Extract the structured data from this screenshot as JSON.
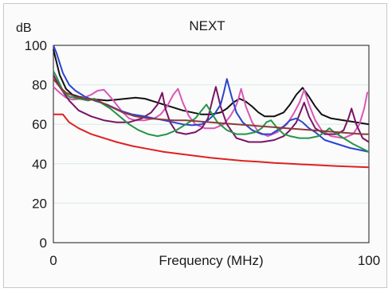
{
  "chart_data": {
    "type": "line",
    "title": "NEXT",
    "ylabel": "dB",
    "xlabel": "Frequency (MHz)",
    "xlim": [
      0,
      100
    ],
    "ylim": [
      0,
      100
    ],
    "x_ticks": [
      "0",
      "100"
    ],
    "y_ticks": [
      "100",
      "80",
      "60",
      "40",
      "20",
      "0"
    ],
    "grid": "horizontal",
    "legend": "none",
    "series": [
      {
        "color": "#e02020",
        "values": [
          [
            0,
            65
          ],
          [
            3,
            65
          ],
          [
            5,
            61
          ],
          [
            8,
            58
          ],
          [
            12,
            55
          ],
          [
            16,
            53
          ],
          [
            20,
            51
          ],
          [
            25,
            49
          ],
          [
            30,
            47.5
          ],
          [
            35,
            46
          ],
          [
            40,
            45
          ],
          [
            45,
            44
          ],
          [
            50,
            43
          ],
          [
            55,
            42.2
          ],
          [
            60,
            41.5
          ],
          [
            65,
            41
          ],
          [
            70,
            40.4
          ],
          [
            75,
            40
          ],
          [
            80,
            39.6
          ],
          [
            85,
            39.2
          ],
          [
            90,
            38.8
          ],
          [
            95,
            38.5
          ],
          [
            100,
            38.2
          ]
        ]
      },
      {
        "color": "#111111",
        "values": [
          [
            0,
            98
          ],
          [
            2,
            85
          ],
          [
            4,
            78
          ],
          [
            6,
            75
          ],
          [
            8,
            74
          ],
          [
            11,
            73
          ],
          [
            14,
            72.5
          ],
          [
            17,
            72
          ],
          [
            20,
            72.5
          ],
          [
            23,
            73
          ],
          [
            26,
            73.5
          ],
          [
            29,
            73
          ],
          [
            32,
            71.5
          ],
          [
            35,
            70
          ],
          [
            38,
            68.5
          ],
          [
            41,
            67
          ],
          [
            44,
            66
          ],
          [
            47,
            65
          ],
          [
            50,
            65
          ],
          [
            53,
            66
          ],
          [
            55,
            68
          ],
          [
            57,
            71
          ],
          [
            59,
            73
          ],
          [
            61,
            71.5
          ],
          [
            63,
            69
          ],
          [
            65,
            66
          ],
          [
            67,
            64
          ],
          [
            70,
            64
          ],
          [
            73,
            66
          ],
          [
            75,
            70
          ],
          [
            77,
            75
          ],
          [
            79,
            78.5
          ],
          [
            81,
            74
          ],
          [
            83,
            69
          ],
          [
            85,
            65
          ],
          [
            88,
            63
          ],
          [
            92,
            62
          ],
          [
            96,
            61
          ],
          [
            100,
            60
          ]
        ]
      },
      {
        "color": "#d957b6",
        "values": [
          [
            0,
            79
          ],
          [
            2,
            76
          ],
          [
            4,
            73.5
          ],
          [
            6,
            72.5
          ],
          [
            9,
            73
          ],
          [
            12,
            75
          ],
          [
            14,
            77
          ],
          [
            16,
            77.5
          ],
          [
            18,
            74
          ],
          [
            20,
            70
          ],
          [
            22,
            66
          ],
          [
            24,
            63
          ],
          [
            26,
            62
          ],
          [
            29,
            62
          ],
          [
            32,
            63
          ],
          [
            34,
            65
          ],
          [
            36,
            69
          ],
          [
            38,
            75
          ],
          [
            39.5,
            78
          ],
          [
            41,
            71
          ],
          [
            43,
            64
          ],
          [
            45,
            60
          ],
          [
            48,
            58
          ],
          [
            51,
            58
          ],
          [
            54,
            60
          ],
          [
            56,
            64
          ],
          [
            57.5,
            68
          ],
          [
            58.5,
            72
          ],
          [
            59.5,
            78
          ],
          [
            61,
            69
          ],
          [
            63,
            61
          ],
          [
            65,
            56
          ],
          [
            68,
            54
          ],
          [
            71,
            56
          ],
          [
            74,
            60
          ],
          [
            76,
            65
          ],
          [
            78,
            71
          ],
          [
            79.5,
            77.5
          ],
          [
            81,
            70
          ],
          [
            83,
            62
          ],
          [
            85,
            57
          ],
          [
            88,
            54
          ],
          [
            92,
            53
          ],
          [
            95,
            55
          ],
          [
            97,
            60
          ],
          [
            98.5,
            68
          ],
          [
            99.5,
            76
          ],
          [
            100,
            76
          ]
        ]
      },
      {
        "color": "#7a1464",
        "values": [
          [
            0,
            85
          ],
          [
            2,
            79
          ],
          [
            5,
            72
          ],
          [
            8,
            67
          ],
          [
            12,
            64
          ],
          [
            16,
            62
          ],
          [
            20,
            61
          ],
          [
            24,
            61
          ],
          [
            28,
            63
          ],
          [
            31,
            66
          ],
          [
            33,
            70
          ],
          [
            34.5,
            76
          ],
          [
            35.5,
            68
          ],
          [
            37,
            61
          ],
          [
            39,
            56
          ],
          [
            42,
            55
          ],
          [
            45,
            56
          ],
          [
            47,
            58
          ],
          [
            49,
            63
          ],
          [
            50.5,
            73
          ],
          [
            51.5,
            79
          ],
          [
            53,
            69
          ],
          [
            55,
            60
          ],
          [
            58,
            53
          ],
          [
            62,
            51
          ],
          [
            66,
            51
          ],
          [
            70,
            52
          ],
          [
            73,
            54
          ],
          [
            75,
            57
          ],
          [
            77,
            61
          ],
          [
            78.5,
            67
          ],
          [
            79.5,
            71
          ],
          [
            81,
            64
          ],
          [
            83,
            58
          ],
          [
            86,
            55
          ],
          [
            90,
            55
          ],
          [
            92,
            57
          ],
          [
            93.5,
            63
          ],
          [
            94.5,
            68
          ],
          [
            96,
            60
          ],
          [
            98,
            53
          ],
          [
            100,
            51
          ]
        ]
      },
      {
        "color": "#2a44cf",
        "values": [
          [
            0,
            100
          ],
          [
            1,
            96
          ],
          [
            3,
            86
          ],
          [
            5,
            80
          ],
          [
            7,
            77
          ],
          [
            10,
            74
          ],
          [
            13,
            72
          ],
          [
            17,
            70
          ],
          [
            21,
            67
          ],
          [
            25,
            65
          ],
          [
            29,
            64
          ],
          [
            32,
            63
          ],
          [
            35,
            62
          ],
          [
            38,
            61
          ],
          [
            41,
            60
          ],
          [
            44,
            59.5
          ],
          [
            47,
            60
          ],
          [
            49,
            62
          ],
          [
            51,
            65
          ],
          [
            53,
            70
          ],
          [
            54,
            76
          ],
          [
            55,
            83
          ],
          [
            56.5,
            74
          ],
          [
            58,
            66
          ],
          [
            60,
            61
          ],
          [
            63,
            57
          ],
          [
            66,
            55
          ],
          [
            69,
            55
          ],
          [
            71,
            57
          ],
          [
            73,
            59
          ],
          [
            75,
            62
          ],
          [
            77,
            63
          ],
          [
            79,
            61
          ],
          [
            81,
            58
          ],
          [
            83,
            56
          ],
          [
            86,
            52
          ],
          [
            90,
            50
          ],
          [
            94,
            48
          ],
          [
            97,
            47
          ],
          [
            100,
            46
          ]
        ]
      },
      {
        "color": "#249648",
        "values": [
          [
            0,
            87
          ],
          [
            1,
            84
          ],
          [
            3,
            77
          ],
          [
            5,
            74
          ],
          [
            8,
            73
          ],
          [
            11,
            72
          ],
          [
            13,
            73
          ],
          [
            15,
            71
          ],
          [
            18,
            68
          ],
          [
            21,
            64
          ],
          [
            24,
            60
          ],
          [
            27,
            57
          ],
          [
            30,
            55
          ],
          [
            33,
            54
          ],
          [
            36,
            55
          ],
          [
            39,
            57
          ],
          [
            42,
            60
          ],
          [
            45,
            63
          ],
          [
            47,
            67
          ],
          [
            48.5,
            70
          ],
          [
            50,
            66
          ],
          [
            52,
            61
          ],
          [
            55,
            57
          ],
          [
            58,
            55
          ],
          [
            61,
            55
          ],
          [
            64,
            56
          ],
          [
            66,
            58
          ],
          [
            67.5,
            61
          ],
          [
            69,
            62
          ],
          [
            71,
            58
          ],
          [
            73,
            55
          ],
          [
            75,
            54
          ],
          [
            78,
            53
          ],
          [
            81,
            53
          ],
          [
            84,
            54
          ],
          [
            86,
            56
          ],
          [
            87.5,
            58
          ],
          [
            89,
            56
          ],
          [
            92,
            53
          ],
          [
            95,
            50
          ],
          [
            100,
            46
          ]
        ]
      },
      {
        "color": "#8b3a3a",
        "values": [
          [
            0,
            83
          ],
          [
            2,
            79
          ],
          [
            4,
            76
          ],
          [
            7,
            74
          ],
          [
            10,
            73
          ],
          [
            14,
            72
          ],
          [
            18,
            69
          ],
          [
            22,
            66
          ],
          [
            26,
            64
          ],
          [
            30,
            63
          ],
          [
            34,
            62.5
          ],
          [
            38,
            62
          ],
          [
            42,
            62
          ],
          [
            46,
            61.5
          ],
          [
            50,
            61
          ],
          [
            54,
            60.5
          ],
          [
            58,
            60
          ],
          [
            62,
            59.5
          ],
          [
            66,
            59
          ],
          [
            70,
            58.5
          ],
          [
            74,
            58
          ],
          [
            78,
            57.5
          ],
          [
            82,
            57
          ],
          [
            86,
            56.5
          ],
          [
            90,
            56
          ],
          [
            94,
            55.5
          ],
          [
            98,
            55
          ],
          [
            100,
            55
          ]
        ]
      }
    ]
  }
}
